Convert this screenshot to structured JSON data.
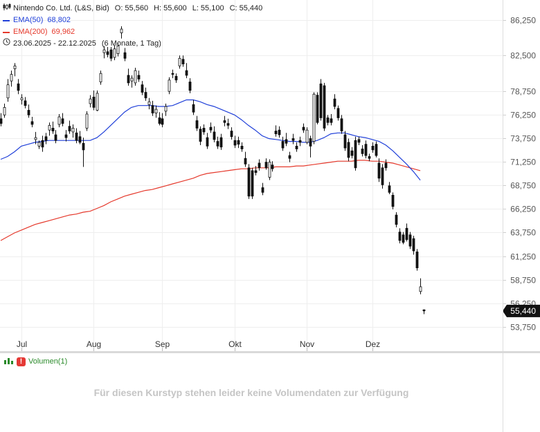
{
  "header": {
    "instrument": "Nintendo Co. Ltd. (L&S, Bid)",
    "open_label": "O:",
    "open_value": "55,560",
    "high_label": "H:",
    "high_value": "55,600",
    "low_label": "L:",
    "low_value": "55,100",
    "close_label": "C:",
    "close_value": "55,440",
    "ema50_label": "EMA(50)",
    "ema50_value": "68,802",
    "ema200_label": "EMA(200)",
    "ema200_value": "69,962",
    "range_text": "23.06.2025 - 22.12.2025",
    "period_text": "(6 Monate, 1 Tag)"
  },
  "volume_pane": {
    "title": "Volumen(1)",
    "message": "Für diesen Kurstyp stehen leider keine Volumendaten zur Verfügung"
  },
  "colors": {
    "ema50": "#1f3fd9",
    "ema200": "#e5382b",
    "candle": "#111111",
    "grid": "#eeeeee",
    "axis_text": "#555555",
    "last_price_bg": "#111111"
  },
  "chart_data": {
    "type": "candlestick",
    "ylim": [
      52500,
      87500
    ],
    "xlim": [
      0,
      125
    ],
    "y_ticks": [
      86250,
      82500,
      78750,
      76250,
      73750,
      71250,
      68750,
      66250,
      63750,
      61250,
      58750,
      56250,
      53750
    ],
    "y_tick_labels": [
      "86,250",
      "82,500",
      "78,750",
      "76,250",
      "73,750",
      "71,250",
      "68,750",
      "66,250",
      "63,750",
      "61,250",
      "58,750",
      "56,250",
      "53,750"
    ],
    "last_price": 55440,
    "last_price_label": "55,440",
    "x_ticks": [
      {
        "label": "Jul",
        "x": 6
      },
      {
        "label": "Aug",
        "x": 27
      },
      {
        "label": "Sep",
        "x": 47
      },
      {
        "label": "Okt",
        "x": 68
      },
      {
        "label": "Nov",
        "x": 89
      },
      {
        "label": "Dez",
        "x": 108
      }
    ],
    "candles": [
      [
        0,
        75800,
        76400,
        75000,
        75300
      ],
      [
        1,
        76200,
        77400,
        75900,
        77000
      ],
      [
        2,
        78000,
        80000,
        77600,
        79400
      ],
      [
        3,
        79800,
        80900,
        79200,
        80500
      ],
      [
        4,
        81100,
        81700,
        80300,
        81400
      ],
      [
        5,
        79500,
        80000,
        78400,
        78800
      ],
      [
        6,
        77800,
        78400,
        77300,
        78000
      ],
      [
        7,
        77700,
        78100,
        76900,
        77200
      ],
      [
        8,
        76700,
        77300,
        75900,
        76200
      ],
      [
        9,
        75500,
        76000,
        74900,
        75200
      ],
      [
        10,
        73600,
        74400,
        73100,
        73800
      ],
      [
        11,
        72900,
        73500,
        72600,
        73300
      ],
      [
        12,
        73500,
        74000,
        72300,
        72800
      ],
      [
        13,
        73900,
        74300,
        73100,
        73500
      ],
      [
        14,
        74600,
        75400,
        74000,
        75100
      ],
      [
        15,
        74800,
        75500,
        74200,
        74500
      ],
      [
        16,
        74100,
        74600,
        73200,
        73500
      ],
      [
        17,
        75200,
        76300,
        74900,
        76000
      ],
      [
        18,
        75800,
        76400,
        75000,
        75300
      ],
      [
        19,
        74100,
        74600,
        73400,
        73800
      ],
      [
        20,
        75000,
        75600,
        74200,
        74500
      ],
      [
        21,
        74400,
        75200,
        73800,
        74800
      ],
      [
        22,
        74300,
        74800,
        73200,
        73500
      ],
      [
        23,
        73900,
        74500,
        73100,
        73300
      ],
      [
        24,
        73200,
        73800,
        70700,
        72500
      ],
      [
        25,
        74800,
        76600,
        74500,
        76300
      ],
      [
        26,
        77400,
        78300,
        77000,
        77900
      ],
      [
        27,
        78100,
        78800,
        76700,
        77000
      ],
      [
        28,
        76700,
        78800,
        76600,
        78500
      ],
      [
        29,
        79700,
        80900,
        79400,
        80600
      ],
      [
        30,
        82800,
        83500,
        82200,
        83100
      ],
      [
        31,
        82900,
        83400,
        82300,
        82600
      ],
      [
        32,
        83100,
        83400,
        81900,
        82200
      ],
      [
        33,
        82300,
        83600,
        82000,
        83200
      ],
      [
        34,
        82700,
        83800,
        82400,
        83500
      ],
      [
        35,
        84900,
        85600,
        84300,
        85300
      ],
      [
        36,
        82800,
        83300,
        81900,
        82200
      ],
      [
        37,
        80400,
        81100,
        79300,
        79600
      ],
      [
        38,
        79800,
        80400,
        79100,
        80100
      ],
      [
        39,
        79600,
        81200,
        79300,
        80900
      ],
      [
        40,
        80400,
        80900,
        79700,
        80000
      ],
      [
        41,
        79400,
        79800,
        78300,
        78600
      ],
      [
        42,
        78600,
        79100,
        77700,
        78000
      ],
      [
        43,
        77300,
        78000,
        76800,
        77600
      ],
      [
        44,
        77200,
        77700,
        76100,
        76400
      ],
      [
        45,
        76400,
        77200,
        75900,
        76800
      ],
      [
        46,
        75900,
        76500,
        75100,
        75300
      ],
      [
        47,
        75800,
        76400,
        74900,
        75200
      ],
      [
        48,
        76600,
        77400,
        76100,
        77100
      ],
      [
        49,
        78700,
        80200,
        78400,
        79900
      ],
      [
        50,
        80600,
        81000,
        80100,
        80500
      ],
      [
        51,
        80300,
        80600,
        79600,
        79900
      ],
      [
        52,
        81400,
        82500,
        81100,
        82200
      ],
      [
        53,
        82100,
        82500,
        81300,
        81600
      ],
      [
        54,
        80900,
        81700,
        80100,
        80400
      ],
      [
        55,
        79700,
        80100,
        78500,
        78800
      ],
      [
        56,
        77300,
        77800,
        76200,
        76500
      ],
      [
        57,
        75600,
        76100,
        74500,
        74800
      ],
      [
        58,
        74700,
        75000,
        73000,
        73400
      ],
      [
        59,
        74800,
        75200,
        74100,
        74400
      ],
      [
        60,
        73800,
        74300,
        72600,
        72900
      ],
      [
        61,
        74900,
        75400,
        74300,
        74600
      ],
      [
        62,
        74400,
        75000,
        73300,
        73600
      ],
      [
        63,
        73400,
        73900,
        72600,
        72900
      ],
      [
        64,
        73800,
        74200,
        72500,
        72800
      ],
      [
        65,
        75600,
        76100,
        75000,
        75400
      ],
      [
        66,
        75300,
        75800,
        74700,
        75100
      ],
      [
        67,
        74500,
        74900,
        73600,
        73900
      ],
      [
        68,
        73500,
        74000,
        72700,
        73000
      ],
      [
        69,
        73500,
        73900,
        72700,
        73100
      ],
      [
        70,
        72900,
        73300,
        72300,
        72600
      ],
      [
        71,
        71600,
        72300,
        70700,
        71000
      ],
      [
        72,
        70600,
        71000,
        67300,
        67600
      ],
      [
        73,
        70300,
        70600,
        67300,
        67600
      ],
      [
        74,
        70300,
        70800,
        69800,
        70100
      ],
      [
        75,
        71100,
        71500,
        70300,
        70600
      ],
      [
        76,
        68500,
        69000,
        67700,
        68000
      ],
      [
        77,
        71200,
        71600,
        70400,
        70600
      ],
      [
        78,
        69600,
        71500,
        69300,
        71200
      ],
      [
        79,
        70900,
        71300,
        70200,
        70500
      ],
      [
        80,
        74500,
        75100,
        73900,
        74200
      ],
      [
        81,
        74600,
        75000,
        73800,
        74100
      ],
      [
        82,
        73400,
        73900,
        72400,
        72700
      ],
      [
        83,
        73600,
        74300,
        72900,
        73200
      ],
      [
        84,
        71900,
        72300,
        71200,
        71600
      ],
      [
        85,
        73700,
        74200,
        73100,
        73500
      ],
      [
        86,
        72900,
        73300,
        72300,
        72600
      ],
      [
        87,
        73500,
        73900,
        72900,
        73300
      ],
      [
        88,
        74900,
        75300,
        74300,
        74600
      ],
      [
        89,
        73300,
        74900,
        73100,
        74600
      ],
      [
        90,
        73700,
        74000,
        71700,
        72900
      ],
      [
        91,
        73400,
        78600,
        73100,
        78400
      ],
      [
        92,
        78300,
        78600,
        75200,
        75400
      ],
      [
        93,
        79500,
        80000,
        75600,
        75900
      ],
      [
        94,
        79300,
        79600,
        74500,
        74800
      ],
      [
        95,
        75900,
        76200,
        75100,
        75400
      ],
      [
        96,
        75800,
        76300,
        75100,
        75400
      ],
      [
        97,
        77900,
        78400,
        76800,
        77100
      ],
      [
        98,
        76900,
        77200,
        75600,
        75900
      ],
      [
        99,
        75800,
        76200,
        74200,
        74500
      ],
      [
        100,
        74100,
        74500,
        72400,
        72700
      ],
      [
        101,
        73300,
        73700,
        71300,
        71700
      ],
      [
        102,
        72400,
        72800,
        71600,
        71900
      ],
      [
        103,
        73500,
        73900,
        70300,
        70600
      ],
      [
        104,
        73600,
        73900,
        73000,
        73300
      ],
      [
        105,
        72600,
        73000,
        71800,
        72100
      ],
      [
        106,
        73100,
        73500,
        71600,
        71900
      ],
      [
        107,
        71800,
        72100,
        71300,
        71600
      ],
      [
        108,
        72900,
        73300,
        72200,
        72500
      ],
      [
        109,
        73100,
        73400,
        71700,
        71900
      ],
      [
        110,
        71100,
        71600,
        69100,
        69500
      ],
      [
        111,
        70600,
        71000,
        68400,
        68800
      ],
      [
        112,
        71100,
        71500,
        70300,
        70600
      ],
      [
        113,
        68700,
        69100,
        67800,
        68000
      ],
      [
        114,
        67700,
        68000,
        66200,
        66500
      ],
      [
        115,
        65600,
        65900,
        64300,
        64600
      ],
      [
        116,
        63800,
        64200,
        62600,
        62900
      ],
      [
        117,
        63500,
        63800,
        62500,
        62700
      ],
      [
        118,
        64200,
        64700,
        62800,
        63000
      ],
      [
        119,
        63500,
        63800,
        62000,
        62300
      ],
      [
        120,
        63100,
        63400,
        61400,
        61800
      ],
      [
        121,
        61700,
        62000,
        59700,
        60000
      ],
      [
        122,
        57500,
        58900,
        57200,
        58000
      ],
      [
        123,
        55560,
        55600,
        55100,
        55440
      ]
    ],
    "series": [
      {
        "name": "EMA(50)",
        "x": [
          0,
          2,
          4,
          6,
          8,
          10,
          12,
          14,
          16,
          18,
          20,
          22,
          24,
          26,
          28,
          30,
          32,
          34,
          36,
          38,
          40,
          42,
          44,
          46,
          48,
          50,
          52,
          54,
          56,
          58,
          60,
          62,
          64,
          66,
          68,
          70,
          72,
          74,
          76,
          78,
          80,
          82,
          84,
          86,
          88,
          90,
          92,
          94,
          96,
          98,
          100,
          102,
          104,
          106,
          108,
          110,
          112,
          114,
          116,
          118,
          120,
          122
        ],
        "values": [
          71500,
          71800,
          72300,
          72900,
          73100,
          73300,
          73400,
          73500,
          73500,
          73500,
          73500,
          73500,
          73500,
          73500,
          73800,
          74400,
          75100,
          75800,
          76500,
          77000,
          77200,
          77200,
          77200,
          77100,
          77100,
          77200,
          77500,
          77800,
          77800,
          77600,
          77300,
          77100,
          76800,
          76500,
          76200,
          75700,
          75100,
          74600,
          74000,
          73700,
          73600,
          73500,
          73400,
          73400,
          73300,
          73300,
          73500,
          73800,
          74200,
          74300,
          74300,
          74100,
          73900,
          73800,
          73600,
          73400,
          73000,
          72400,
          71700,
          71000,
          70200,
          69300
        ]
      },
      {
        "name": "EMA(200)",
        "x": [
          0,
          2,
          4,
          6,
          8,
          10,
          12,
          14,
          16,
          18,
          20,
          22,
          24,
          26,
          28,
          30,
          32,
          34,
          36,
          38,
          40,
          42,
          44,
          46,
          48,
          50,
          52,
          54,
          56,
          58,
          60,
          62,
          64,
          66,
          68,
          70,
          72,
          74,
          76,
          78,
          80,
          82,
          84,
          86,
          88,
          90,
          92,
          94,
          96,
          98,
          100,
          102,
          104,
          106,
          108,
          110,
          112,
          114,
          116,
          118,
          120,
          122
        ],
        "values": [
          62900,
          63300,
          63700,
          64000,
          64300,
          64600,
          64800,
          65000,
          65200,
          65400,
          65600,
          65700,
          65900,
          66000,
          66300,
          66600,
          67000,
          67300,
          67600,
          67800,
          68000,
          68200,
          68300,
          68500,
          68700,
          68900,
          69100,
          69300,
          69500,
          69800,
          70000,
          70100,
          70200,
          70300,
          70400,
          70500,
          70500,
          70600,
          70600,
          70600,
          70700,
          70700,
          70700,
          70800,
          70800,
          70900,
          71000,
          71100,
          71200,
          71300,
          71300,
          71300,
          71400,
          71400,
          71300,
          71300,
          71200,
          71100,
          70900,
          70700,
          70500,
          70300
        ]
      }
    ]
  }
}
